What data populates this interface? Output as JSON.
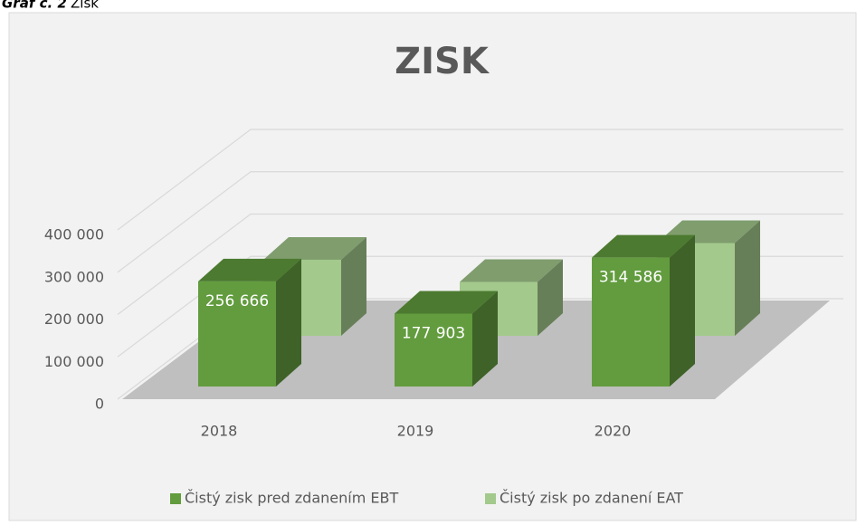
{
  "caption": {
    "label": "Graf č. 2",
    "text": "Zisk"
  },
  "chart_data": {
    "type": "bar3d",
    "title": "ZISK",
    "categories": [
      "2018",
      "2019",
      "2020"
    ],
    "series": [
      {
        "name": "Čistý zisk pred zdanením EBT",
        "color": "#629c3e",
        "values": [
          256666,
          177903,
          314586
        ],
        "value_labels": [
          "256 666",
          "177 903",
          "314 586"
        ]
      },
      {
        "name": "Čistý zisk po zdanení EAT",
        "color": "#a3c98c",
        "values": [
          205000,
          145000,
          250000
        ]
      }
    ],
    "ylim": [
      0,
      400000
    ],
    "yticks": [
      0,
      {
        "value": 100000,
        "label": "100 000"
      },
      {
        "value": 200000,
        "label": "200 000"
      },
      {
        "value": 300000,
        "label": "300 000"
      },
      {
        "value": 400000,
        "label": "400 000"
      }
    ],
    "grid": true,
    "legend": "bottom"
  }
}
